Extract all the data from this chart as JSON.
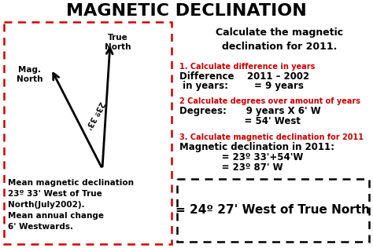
{
  "title": "MAGNETIC DECLINATION",
  "bg_color": "#ffffff",
  "red_color": "#cc0000",
  "black_color": "#000000",
  "left_box_text": "Mean magnetic declination\n23º 33' West of True\nNorth(July2002).\nMean annual change\n6' Westwards.",
  "calc_title": "Calculate the magnetic\ndeclination for 2011.",
  "step1_label": "1. Calculate difference in years",
  "step1_line1": "Difference    2011 – 2002",
  "step1_line2": " in years:        = 9 years",
  "step2_label": "2 Calculate degrees over amount of years",
  "step2_line1": "Degrees:      9 years X 6' W",
  "step2_line2": "                    = 54' West",
  "step3_label": "3. Calculate magnetic declination for 2011",
  "step3_line1": "Magnetic declination in 2011:",
  "step3_line2": "             = 23º 33'+54'W",
  "step3_line3": "             = 23º 87' W",
  "final_text": "= 24º 27' West of True North",
  "angle_label": "23º 33'",
  "true_north_label": "True\nNorth",
  "mag_north_label": "Mag.\nNorth"
}
